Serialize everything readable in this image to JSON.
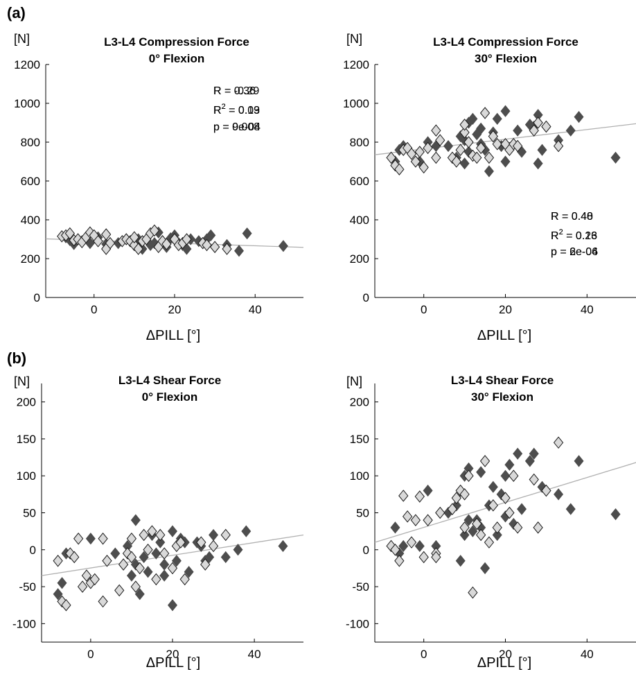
{
  "panel_labels": [
    "(a)",
    "(b)"
  ],
  "chart_data": [
    {
      "type": "scatter",
      "title": "L3-L4 Compression Force",
      "subtitle": "0° Flexion",
      "ylabel": "[N]",
      "xlabel": "ΔPILL [°]",
      "xlim": [
        -12,
        52
      ],
      "ylim": [
        0,
        1200
      ],
      "xticks": [
        0,
        20,
        40
      ],
      "yticks": [
        0,
        200,
        400,
        600,
        800,
        1000,
        1200
      ],
      "stats": {
        "r": "R = -0.29",
        "r2_base": "R",
        "r2_exp": "2",
        "r2_val": " = 0.09",
        "p": "p = 0.008"
      },
      "stats_position": "top-right",
      "regression": {
        "x": [
          -12,
          52
        ],
        "y": [
          302,
          258
        ]
      },
      "series": [
        {
          "color": "#4d4d4d",
          "x": [
            -7,
            -6,
            -5,
            -3,
            -1,
            1,
            3,
            6,
            8,
            9,
            10,
            11,
            11,
            12,
            13,
            14,
            15,
            16,
            17,
            18,
            19,
            20,
            21,
            22,
            23,
            24,
            26,
            27,
            28,
            29,
            30,
            33,
            36,
            38,
            47
          ],
          "y": [
            310,
            295,
            275,
            290,
            280,
            310,
            275,
            280,
            300,
            290,
            280,
            260,
            300,
            250,
            300,
            270,
            280,
            335,
            290,
            260,
            305,
            320,
            280,
            270,
            250,
            300,
            290,
            280,
            300,
            320,
            260,
            270,
            240,
            330,
            265
          ]
        },
        {
          "color": "#d9d9d9",
          "x": [
            -8,
            -7,
            -6,
            -5,
            -4,
            -3,
            -2,
            -1,
            0,
            1,
            3,
            3,
            4,
            7,
            8,
            9,
            10,
            10,
            11,
            12,
            13,
            14,
            15,
            16,
            17,
            18,
            20,
            21,
            22,
            23,
            27,
            28,
            30,
            33
          ],
          "y": [
            315,
            320,
            330,
            295,
            300,
            285,
            310,
            335,
            320,
            290,
            325,
            250,
            280,
            290,
            300,
            290,
            270,
            310,
            250,
            290,
            300,
            330,
            345,
            260,
            290,
            275,
            300,
            270,
            280,
            300,
            280,
            270,
            260,
            250
          ]
        }
      ]
    },
    {
      "type": "scatter",
      "title": "L3-L4 Compression Force",
      "subtitle": "30° Flexion",
      "ylabel": "[N]",
      "xlabel": "ΔPILL [°]",
      "xlim": [
        -12,
        52
      ],
      "ylim": [
        0,
        1200
      ],
      "xticks": [
        0,
        20,
        40
      ],
      "yticks": [
        0,
        200,
        400,
        600,
        800,
        1000,
        1200
      ],
      "stats": {
        "r": "R = 0.40",
        "r2_base": "R",
        "r2_exp": "2",
        "r2_val": " = 0.16",
        "p": "p = 2e-04"
      },
      "stats_position": "bottom-right",
      "regression": {
        "x": [
          -12,
          52
        ],
        "y": [
          735,
          895
        ]
      },
      "series": [
        {
          "color": "#4d4d4d",
          "x": [
            -7,
            -6,
            -5,
            -1,
            1,
            3,
            6,
            8,
            9,
            10,
            10,
            11,
            11,
            12,
            13,
            14,
            14,
            15,
            16,
            17,
            18,
            19,
            20,
            20,
            21,
            22,
            23,
            24,
            26,
            27,
            28,
            28,
            29,
            30,
            33,
            36,
            38,
            47
          ],
          "y": [
            700,
            760,
            780,
            700,
            800,
            780,
            780,
            720,
            830,
            690,
            810,
            750,
            900,
            920,
            840,
            790,
            870,
            760,
            650,
            850,
            920,
            780,
            700,
            960,
            770,
            790,
            860,
            750,
            890,
            880,
            690,
            940,
            760,
            880,
            810,
            860,
            930,
            720
          ]
        },
        {
          "color": "#d9d9d9",
          "x": [
            -8,
            -7,
            -6,
            -5,
            -4,
            -3,
            -2,
            -1,
            0,
            1,
            3,
            3,
            4,
            7,
            8,
            9,
            10,
            10,
            11,
            12,
            13,
            14,
            15,
            16,
            17,
            18,
            20,
            21,
            22,
            23,
            27,
            28,
            30,
            33
          ],
          "y": [
            720,
            680,
            660,
            760,
            770,
            740,
            700,
            750,
            670,
            770,
            860,
            720,
            810,
            720,
            700,
            760,
            850,
            890,
            800,
            730,
            720,
            770,
            950,
            720,
            830,
            790,
            790,
            760,
            790,
            780,
            860,
            900,
            880,
            780
          ]
        }
      ]
    },
    {
      "type": "scatter",
      "title": "L3-L4 Shear Force",
      "subtitle": "0° Flexion",
      "ylabel": "[N]",
      "xlabel": "ΔPILL [°]",
      "xlim": [
        -12,
        52
      ],
      "ylim": [
        -125,
        225
      ],
      "xticks": [
        0,
        20,
        40
      ],
      "yticks": [
        -100,
        -50,
        0,
        50,
        100,
        150,
        200
      ],
      "stats": {
        "r": "R = 0.36",
        "r2_base": "R",
        "r2_exp": "2",
        "r2_val": " = 0.13",
        "p": "p = 9e-04"
      },
      "stats_position": "top-right",
      "regression": {
        "x": [
          -12,
          52
        ],
        "y": [
          -35,
          20
        ]
      },
      "series": [
        {
          "color": "#4d4d4d",
          "x": [
            -8,
            -7,
            -6,
            0,
            6,
            8,
            9,
            10,
            11,
            11,
            12,
            13,
            14,
            15,
            16,
            17,
            18,
            18,
            20,
            20,
            21,
            22,
            23,
            24,
            26,
            27,
            28,
            29,
            30,
            33,
            36,
            38,
            47
          ],
          "y": [
            -60,
            -45,
            -5,
            15,
            -5,
            -20,
            5,
            -35,
            -20,
            40,
            -60,
            -10,
            -30,
            20,
            -5,
            10,
            -35,
            -20,
            -75,
            25,
            -15,
            15,
            10,
            -30,
            10,
            5,
            -15,
            -10,
            20,
            -10,
            0,
            25,
            5
          ]
        },
        {
          "color": "#d9d9d9",
          "x": [
            -8,
            -7,
            -6,
            -5,
            -4,
            -3,
            -2,
            -1,
            0,
            1,
            3,
            3,
            4,
            7,
            8,
            9,
            10,
            10,
            11,
            12,
            13,
            14,
            15,
            16,
            17,
            18,
            20,
            21,
            22,
            23,
            27,
            28,
            30,
            33
          ],
          "y": [
            -15,
            -70,
            -75,
            -5,
            -10,
            15,
            -50,
            -35,
            -45,
            -40,
            15,
            -70,
            -15,
            -55,
            -20,
            -5,
            -10,
            15,
            -50,
            -25,
            20,
            0,
            25,
            -40,
            20,
            -5,
            -25,
            5,
            10,
            -40,
            10,
            -20,
            5,
            20
          ]
        }
      ]
    },
    {
      "type": "scatter",
      "title": "L3-L4 Shear Force",
      "subtitle": "30° Flexion",
      "ylabel": "[N]",
      "xlabel": "ΔPILL [°]",
      "xlim": [
        -12,
        52
      ],
      "ylim": [
        -125,
        225
      ],
      "xticks": [
        0,
        20,
        40
      ],
      "yticks": [
        -100,
        -50,
        0,
        50,
        100,
        150,
        200
      ],
      "stats": {
        "r": "R = 0.48",
        "r2_base": "R",
        "r2_exp": "2",
        "r2_val": " = 0.23",
        "p": "p = 6e-06"
      },
      "stats_position": "bottom-right",
      "regression": {
        "x": [
          -12,
          52
        ],
        "y": [
          10,
          118
        ]
      },
      "series": [
        {
          "color": "#4d4d4d",
          "x": [
            -7,
            -6,
            -5,
            -1,
            1,
            3,
            6,
            8,
            9,
            10,
            10,
            11,
            11,
            12,
            13,
            14,
            14,
            15,
            16,
            17,
            18,
            19,
            20,
            20,
            21,
            22,
            23,
            24,
            26,
            27,
            28,
            29,
            30,
            33,
            36,
            38,
            47
          ],
          "y": [
            30,
            -5,
            5,
            5,
            80,
            5,
            50,
            60,
            -15,
            20,
            100,
            40,
            110,
            25,
            40,
            30,
            105,
            -25,
            60,
            85,
            20,
            75,
            45,
            100,
            115,
            35,
            130,
            55,
            120,
            130,
            30,
            85,
            80,
            75,
            55,
            120,
            48
          ]
        },
        {
          "color": "#d9d9d9",
          "x": [
            -8,
            -7,
            -6,
            -5,
            -4,
            -3,
            -2,
            -1,
            0,
            1,
            3,
            3,
            4,
            7,
            8,
            9,
            10,
            10,
            11,
            12,
            13,
            14,
            15,
            16,
            17,
            18,
            20,
            21,
            22,
            23,
            27,
            28,
            30,
            33
          ],
          "y": [
            5,
            0,
            -15,
            73,
            45,
            10,
            40,
            72,
            -10,
            40,
            -5,
            -10,
            50,
            55,
            70,
            80,
            30,
            75,
            100,
            -58,
            35,
            20,
            120,
            10,
            60,
            30,
            70,
            50,
            100,
            30,
            95,
            30,
            80,
            145
          ]
        }
      ]
    }
  ]
}
